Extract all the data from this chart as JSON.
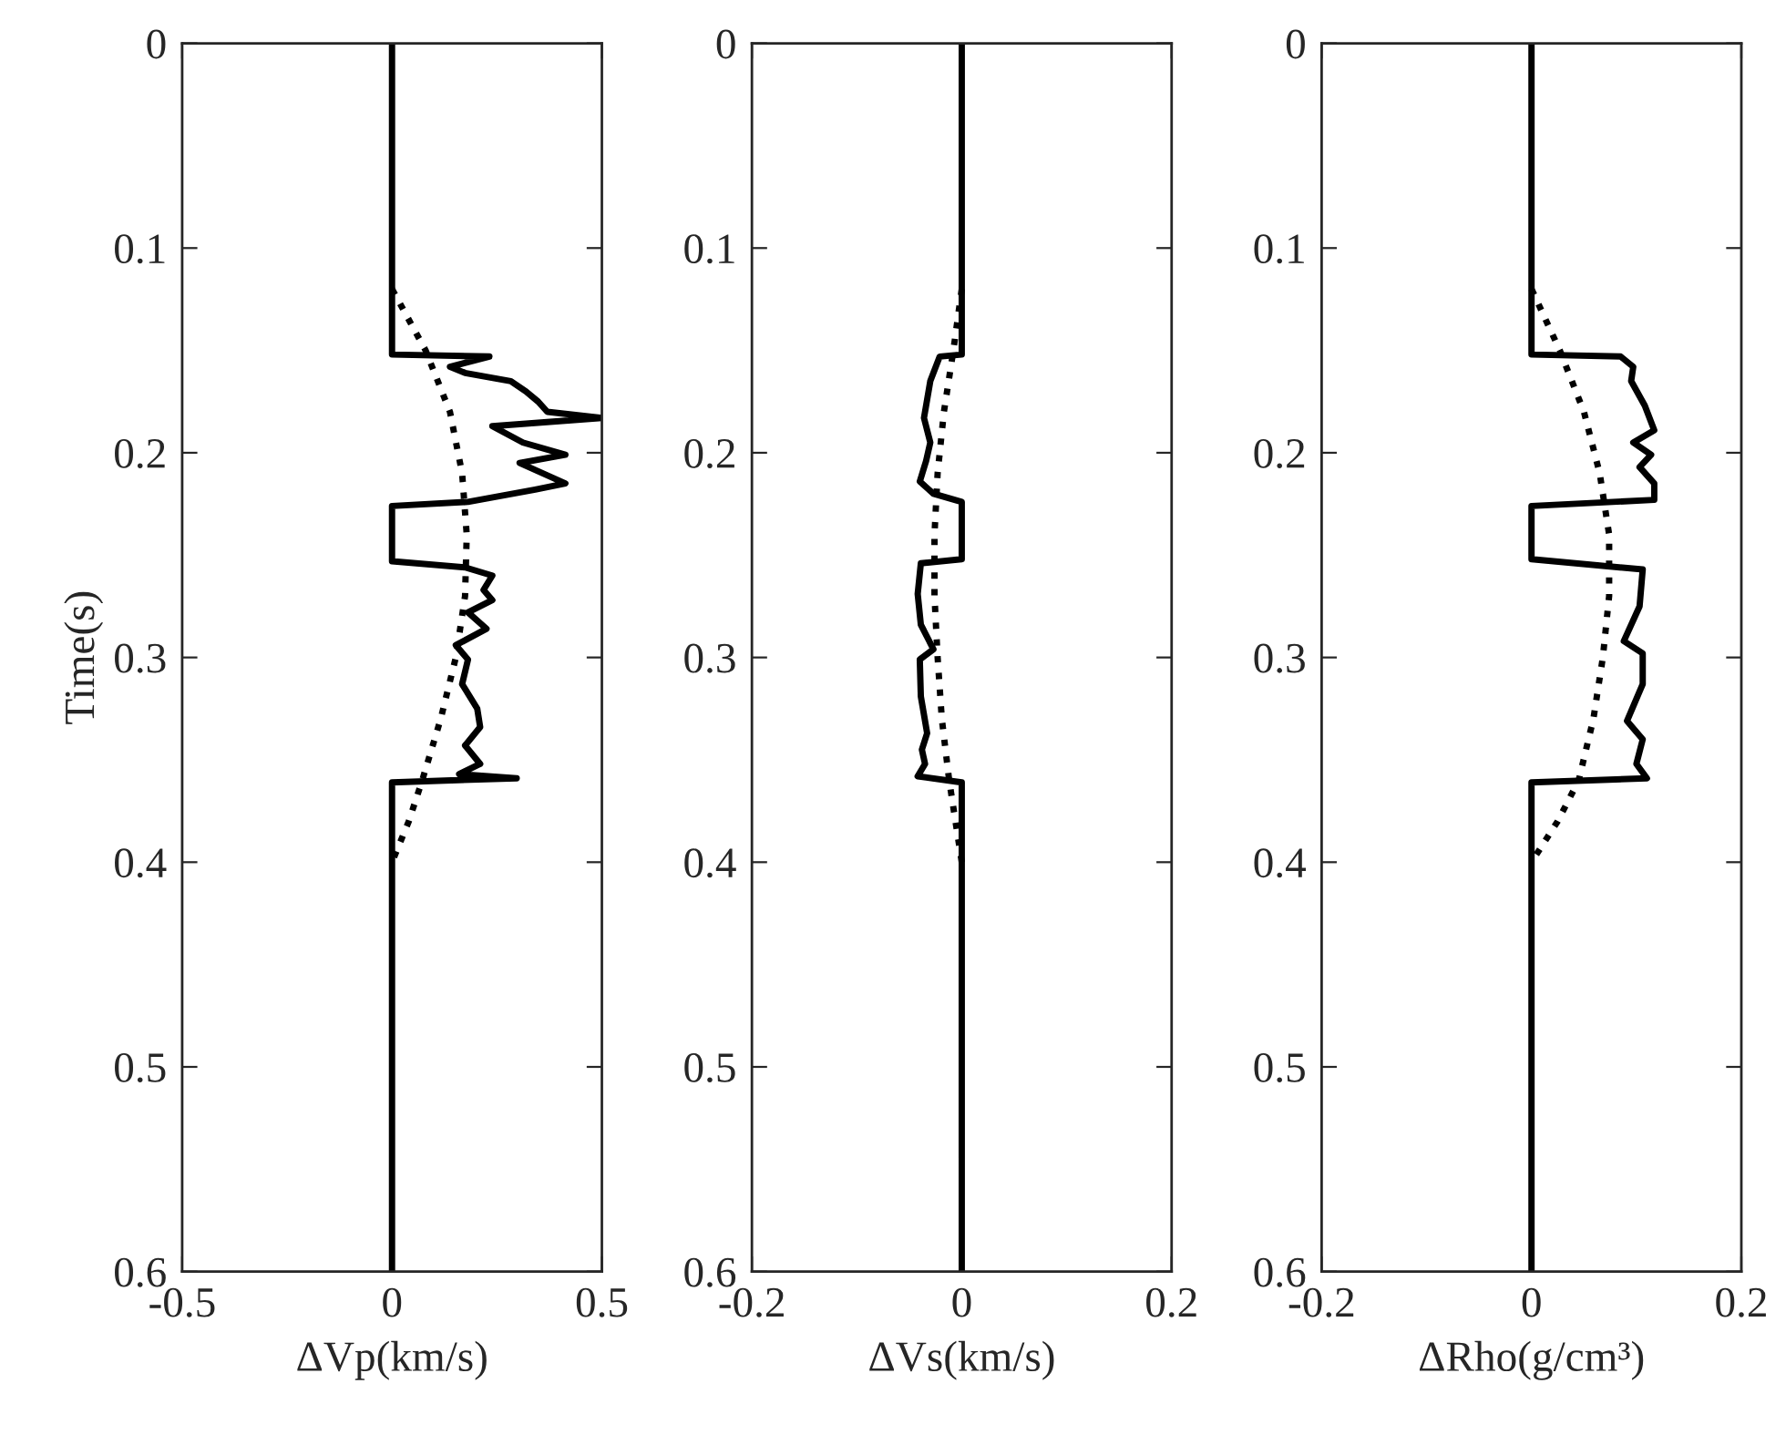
{
  "chart_data": [
    {
      "type": "line",
      "xlabel": "ΔVp(km/s)",
      "ylabel": "Time(s)",
      "xlim": [
        -0.5,
        0.5
      ],
      "xticks": [
        -0.5,
        0,
        0.5
      ],
      "ylim": [
        0.6,
        0
      ],
      "yticks": [
        0,
        0.1,
        0.2,
        0.3,
        0.4,
        0.5,
        0.6
      ],
      "grid": false,
      "legend": false,
      "series": [
        {
          "color": "#000000",
          "line_style": "solid",
          "x": [
            0,
            0,
            0.232,
            0.138,
            0.174,
            0.283,
            0.319,
            0.348,
            0.37,
            0.5,
            0.239,
            0.312,
            0.413,
            0.304,
            0.413,
            0.341,
            0.181,
            0,
            0,
            0.174,
            0.239,
            0.218,
            0.239,
            0.181,
            0.225,
            0.152,
            0.181,
            0.167,
            0.203,
            0.21,
            0.174,
            0.21,
            0.16,
            0.297,
            0,
            0
          ],
          "values": [
            0,
            0.152,
            0.153,
            0.158,
            0.161,
            0.165,
            0.17,
            0.175,
            0.18,
            0.183,
            0.187,
            0.195,
            0.201,
            0.205,
            0.215,
            0.218,
            0.224,
            0.226,
            0.253,
            0.256,
            0.26,
            0.267,
            0.272,
            0.278,
            0.286,
            0.294,
            0.301,
            0.313,
            0.325,
            0.334,
            0.343,
            0.352,
            0.357,
            0.359,
            0.361,
            0.6
          ]
        },
        {
          "color": "#000000",
          "line_style": "dotted",
          "x": [
            0,
            0.08,
            0.138,
            0.167,
            0.178,
            0.174,
            0.152,
            0.116,
            0.072,
            0.04,
            0
          ],
          "values": [
            0.12,
            0.15,
            0.18,
            0.21,
            0.24,
            0.27,
            0.3,
            0.33,
            0.36,
            0.38,
            0.4
          ]
        }
      ]
    },
    {
      "type": "line",
      "xlabel": "ΔVs(km/s)",
      "xlim": [
        -0.2,
        0.2
      ],
      "xticks": [
        -0.2,
        0,
        0.2
      ],
      "ylim": [
        0.6,
        0
      ],
      "yticks": [
        0,
        0.1,
        0.2,
        0.3,
        0.4,
        0.5,
        0.6
      ],
      "grid": false,
      "legend": false,
      "series": [
        {
          "color": "#000000",
          "line_style": "solid",
          "x": [
            0,
            0,
            -0.021,
            -0.03,
            -0.036,
            -0.03,
            -0.034,
            -0.04,
            -0.027,
            0,
            0,
            -0.039,
            -0.042,
            -0.039,
            -0.027,
            -0.04,
            -0.039,
            -0.033,
            -0.038,
            -0.035,
            -0.042,
            0,
            0
          ],
          "values": [
            0,
            0.152,
            0.153,
            0.165,
            0.183,
            0.195,
            0.204,
            0.214,
            0.22,
            0.224,
            0.252,
            0.254,
            0.269,
            0.284,
            0.296,
            0.301,
            0.319,
            0.337,
            0.345,
            0.352,
            0.358,
            0.361,
            0.6
          ]
        },
        {
          "color": "#000000",
          "line_style": "dotted",
          "x": [
            0,
            -0.008,
            -0.017,
            -0.023,
            -0.026,
            -0.026,
            -0.023,
            -0.019,
            -0.012,
            -0.006,
            0
          ],
          "values": [
            0.12,
            0.15,
            0.18,
            0.21,
            0.24,
            0.27,
            0.3,
            0.33,
            0.36,
            0.38,
            0.4
          ]
        }
      ]
    },
    {
      "type": "line",
      "xlabel": "ΔRho(g/cm³)",
      "xlim": [
        -0.2,
        0.2
      ],
      "xticks": [
        -0.2,
        0,
        0.2
      ],
      "ylim": [
        0.6,
        0
      ],
      "yticks": [
        0,
        0.1,
        0.2,
        0.3,
        0.4,
        0.5,
        0.6
      ],
      "grid": false,
      "legend": false,
      "series": [
        {
          "color": "#000000",
          "line_style": "solid",
          "x": [
            0,
            0,
            0.085,
            0.097,
            0.095,
            0.108,
            0.117,
            0.097,
            0.114,
            0.103,
            0.117,
            0.117,
            0,
            0,
            0.106,
            0.103,
            0.088,
            0.106,
            0.106,
            0.091,
            0.106,
            0.1,
            0.11,
            0,
            0
          ],
          "values": [
            0,
            0.152,
            0.153,
            0.158,
            0.165,
            0.177,
            0.189,
            0.195,
            0.201,
            0.207,
            0.215,
            0.223,
            0.226,
            0.252,
            0.257,
            0.275,
            0.292,
            0.298,
            0.313,
            0.331,
            0.34,
            0.352,
            0.359,
            0.361,
            0.6
          ]
        },
        {
          "color": "#000000",
          "line_style": "dotted",
          "x": [
            0,
            0.027,
            0.05,
            0.065,
            0.074,
            0.074,
            0.068,
            0.059,
            0.045,
            0.025,
            0
          ],
          "values": [
            0.12,
            0.15,
            0.18,
            0.21,
            0.24,
            0.27,
            0.3,
            0.33,
            0.36,
            0.38,
            0.4
          ]
        }
      ]
    }
  ]
}
